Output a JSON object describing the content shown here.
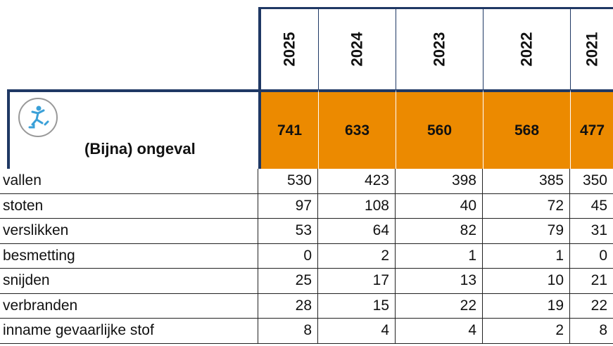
{
  "header": {
    "years": [
      "2025",
      "2024",
      "2023",
      "2022",
      "2021"
    ]
  },
  "summary": {
    "label": "(Bijna) ongeval",
    "values": [
      741,
      633,
      560,
      568,
      477
    ]
  },
  "rows": [
    {
      "label": "vallen",
      "values": [
        530,
        423,
        398,
        385,
        350
      ]
    },
    {
      "label": "stoten",
      "values": [
        97,
        108,
        40,
        72,
        45
      ]
    },
    {
      "label": "verslikken",
      "values": [
        53,
        64,
        82,
        79,
        31
      ]
    },
    {
      "label": "besmetting",
      "values": [
        0,
        2,
        1,
        1,
        0
      ]
    },
    {
      "label": "snijden",
      "values": [
        25,
        17,
        13,
        10,
        21
      ]
    },
    {
      "label": "verbranden",
      "values": [
        28,
        15,
        22,
        19,
        22
      ]
    },
    {
      "label": "inname gevaarlijke stof",
      "values": [
        8,
        4,
        4,
        2,
        8
      ]
    }
  ]
}
